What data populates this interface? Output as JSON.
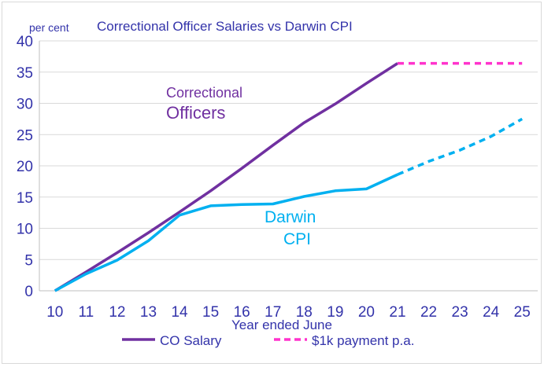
{
  "chart_data": {
    "type": "line",
    "title": "Correctional Officer Salaries vs Darwin CPI",
    "ylabel": "per cent",
    "xlabel": "Year ended June",
    "x": [
      10,
      11,
      12,
      13,
      14,
      15,
      16,
      17,
      18,
      19,
      20,
      21,
      22,
      23,
      24,
      25
    ],
    "xlim": [
      10,
      25
    ],
    "ylim": [
      0,
      40
    ],
    "yticks": [
      0,
      5,
      10,
      15,
      20,
      25,
      30,
      35,
      40
    ],
    "grid": true,
    "legend_position": "bottom",
    "series": [
      {
        "name": "CO Salary",
        "color": "#7030a0",
        "style": "solid",
        "x": [
          10,
          11,
          12,
          13,
          14,
          15,
          16,
          17,
          18,
          19,
          20,
          21
        ],
        "values": [
          0,
          3.0,
          6.1,
          9.3,
          12.6,
          16.0,
          19.6,
          23.3,
          26.9,
          29.9,
          33.2,
          36.4
        ]
      },
      {
        "name": "$1k payment p.a.",
        "color": "#ff33cc",
        "style": "dashed",
        "x": [
          21,
          22,
          23,
          24,
          25
        ],
        "values": [
          36.4,
          36.4,
          36.4,
          36.4,
          36.4
        ]
      },
      {
        "color": "#00b0f0",
        "style": "solid",
        "x": [
          10,
          11,
          12,
          13,
          14,
          15,
          16,
          17,
          18,
          19,
          20,
          21
        ],
        "values": [
          0,
          2.7,
          4.9,
          8.0,
          12.1,
          13.6,
          13.8,
          13.9,
          15.1,
          16.0,
          16.3,
          18.6
        ]
      },
      {
        "color": "#00b0f0",
        "style": "dashed",
        "x": [
          21,
          22,
          23,
          24,
          25
        ],
        "values": [
          18.6,
          20.7,
          22.5,
          24.7,
          27.5
        ]
      }
    ],
    "annotations": [
      {
        "text": "Correctional",
        "color": "#7030a0"
      },
      {
        "text": "Officers",
        "color": "#7030a0"
      },
      {
        "text": "Darwin",
        "color": "#00b0f0"
      },
      {
        "text": "CPI",
        "color": "#00b0f0"
      }
    ],
    "legend": [
      {
        "label": "CO Salary",
        "color": "#7030a0",
        "style": "solid"
      },
      {
        "label": "$1k payment p.a.",
        "color": "#ff33cc",
        "style": "dashed"
      }
    ]
  }
}
